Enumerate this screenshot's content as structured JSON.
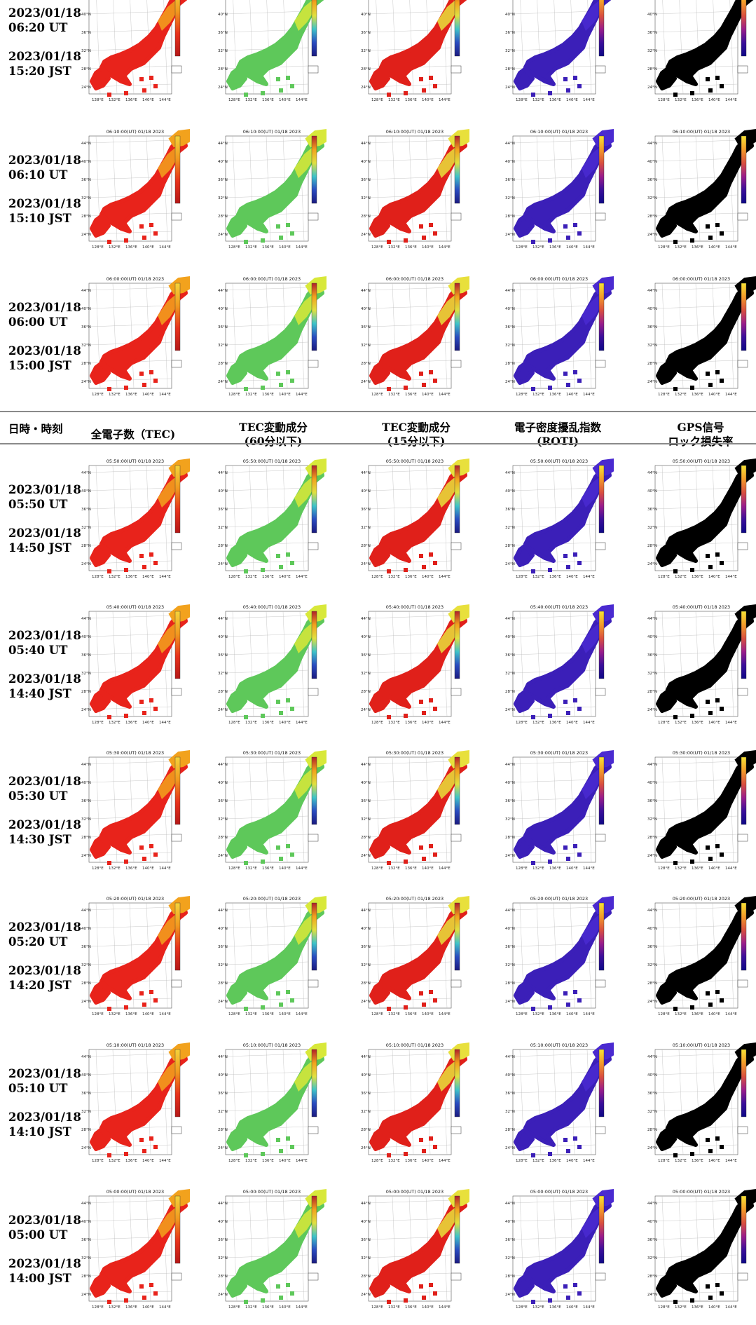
{
  "header": {
    "time_col": "日時・時刻",
    "columns": [
      {
        "line1": "全電子数（TEC)",
        "line2": ""
      },
      {
        "line1": "TEC変動成分",
        "line2": "(60分以下)"
      },
      {
        "line1": "TEC変動成分",
        "line2": "(15分以下)"
      },
      {
        "line1": "電子密度擾乱指数",
        "line2": "(ROTI)"
      },
      {
        "line1": "GPS信号",
        "line2": "ロック損失率"
      }
    ]
  },
  "map_axes": {
    "lat_ticks": [
      "44°N",
      "40°N",
      "36°N",
      "32°N",
      "28°N",
      "24°N"
    ],
    "lon_ticks": [
      "128°E",
      "132°E",
      "136°E",
      "140°E",
      "144°E"
    ]
  },
  "panel_types": [
    {
      "name": "tec",
      "colormap": "red-yellow",
      "land": "#e8231b",
      "north": "#f2a21d"
    },
    {
      "name": "tec-60min",
      "colormap": "jet",
      "land": "#5ec85a",
      "north": "#d8e83a"
    },
    {
      "name": "tec-15min",
      "colormap": "jet",
      "land": "#e0201a",
      "north": "#e8e03c"
    },
    {
      "name": "roti",
      "colormap": "plasma",
      "land": "#3b1fb8",
      "north": "#4a2ad0"
    },
    {
      "name": "lol",
      "colormap": "mono",
      "land": "#000000",
      "north": "#000000"
    }
  ],
  "rows": [
    {
      "utc_date": "2023/01/18",
      "utc_time": "06:20 UT",
      "jst_date": "2023/01/18",
      "jst_time": "15:20 JST",
      "map_title": ""
    },
    {
      "utc_date": "2023/01/18",
      "utc_time": "06:10 UT",
      "jst_date": "2023/01/18",
      "jst_time": "15:10 JST",
      "map_title": "06:10:00(UT) 01/18 2023"
    },
    {
      "utc_date": "2023/01/18",
      "utc_time": "06:00 UT",
      "jst_date": "2023/01/18",
      "jst_time": "15:00 JST",
      "map_title": "06:00:00(UT) 01/18 2023"
    },
    {
      "utc_date": "2023/01/18",
      "utc_time": "05:50 UT",
      "jst_date": "2023/01/18",
      "jst_time": "14:50 JST",
      "map_title": "05:50:00(UT) 01/18 2023"
    },
    {
      "utc_date": "2023/01/18",
      "utc_time": "05:40 UT",
      "jst_date": "2023/01/18",
      "jst_time": "14:40 JST",
      "map_title": "05:40:00(UT) 01/18 2023"
    },
    {
      "utc_date": "2023/01/18",
      "utc_time": "05:30 UT",
      "jst_date": "2023/01/18",
      "jst_time": "14:30 JST",
      "map_title": "05:30:00(UT) 01/18 2023"
    },
    {
      "utc_date": "2023/01/18",
      "utc_time": "05:20 UT",
      "jst_date": "2023/01/18",
      "jst_time": "14:20 JST",
      "map_title": "05:20:00(UT) 01/18 2023"
    },
    {
      "utc_date": "2023/01/18",
      "utc_time": "05:10 UT",
      "jst_date": "2023/01/18",
      "jst_time": "14:10 JST",
      "map_title": "05:10:00(UT) 01/18 2023"
    },
    {
      "utc_date": "2023/01/18",
      "utc_time": "05:00 UT",
      "jst_date": "2023/01/18",
      "jst_time": "14:00 JST",
      "map_title": "05:00:00(UT) 01/18 2023"
    }
  ]
}
